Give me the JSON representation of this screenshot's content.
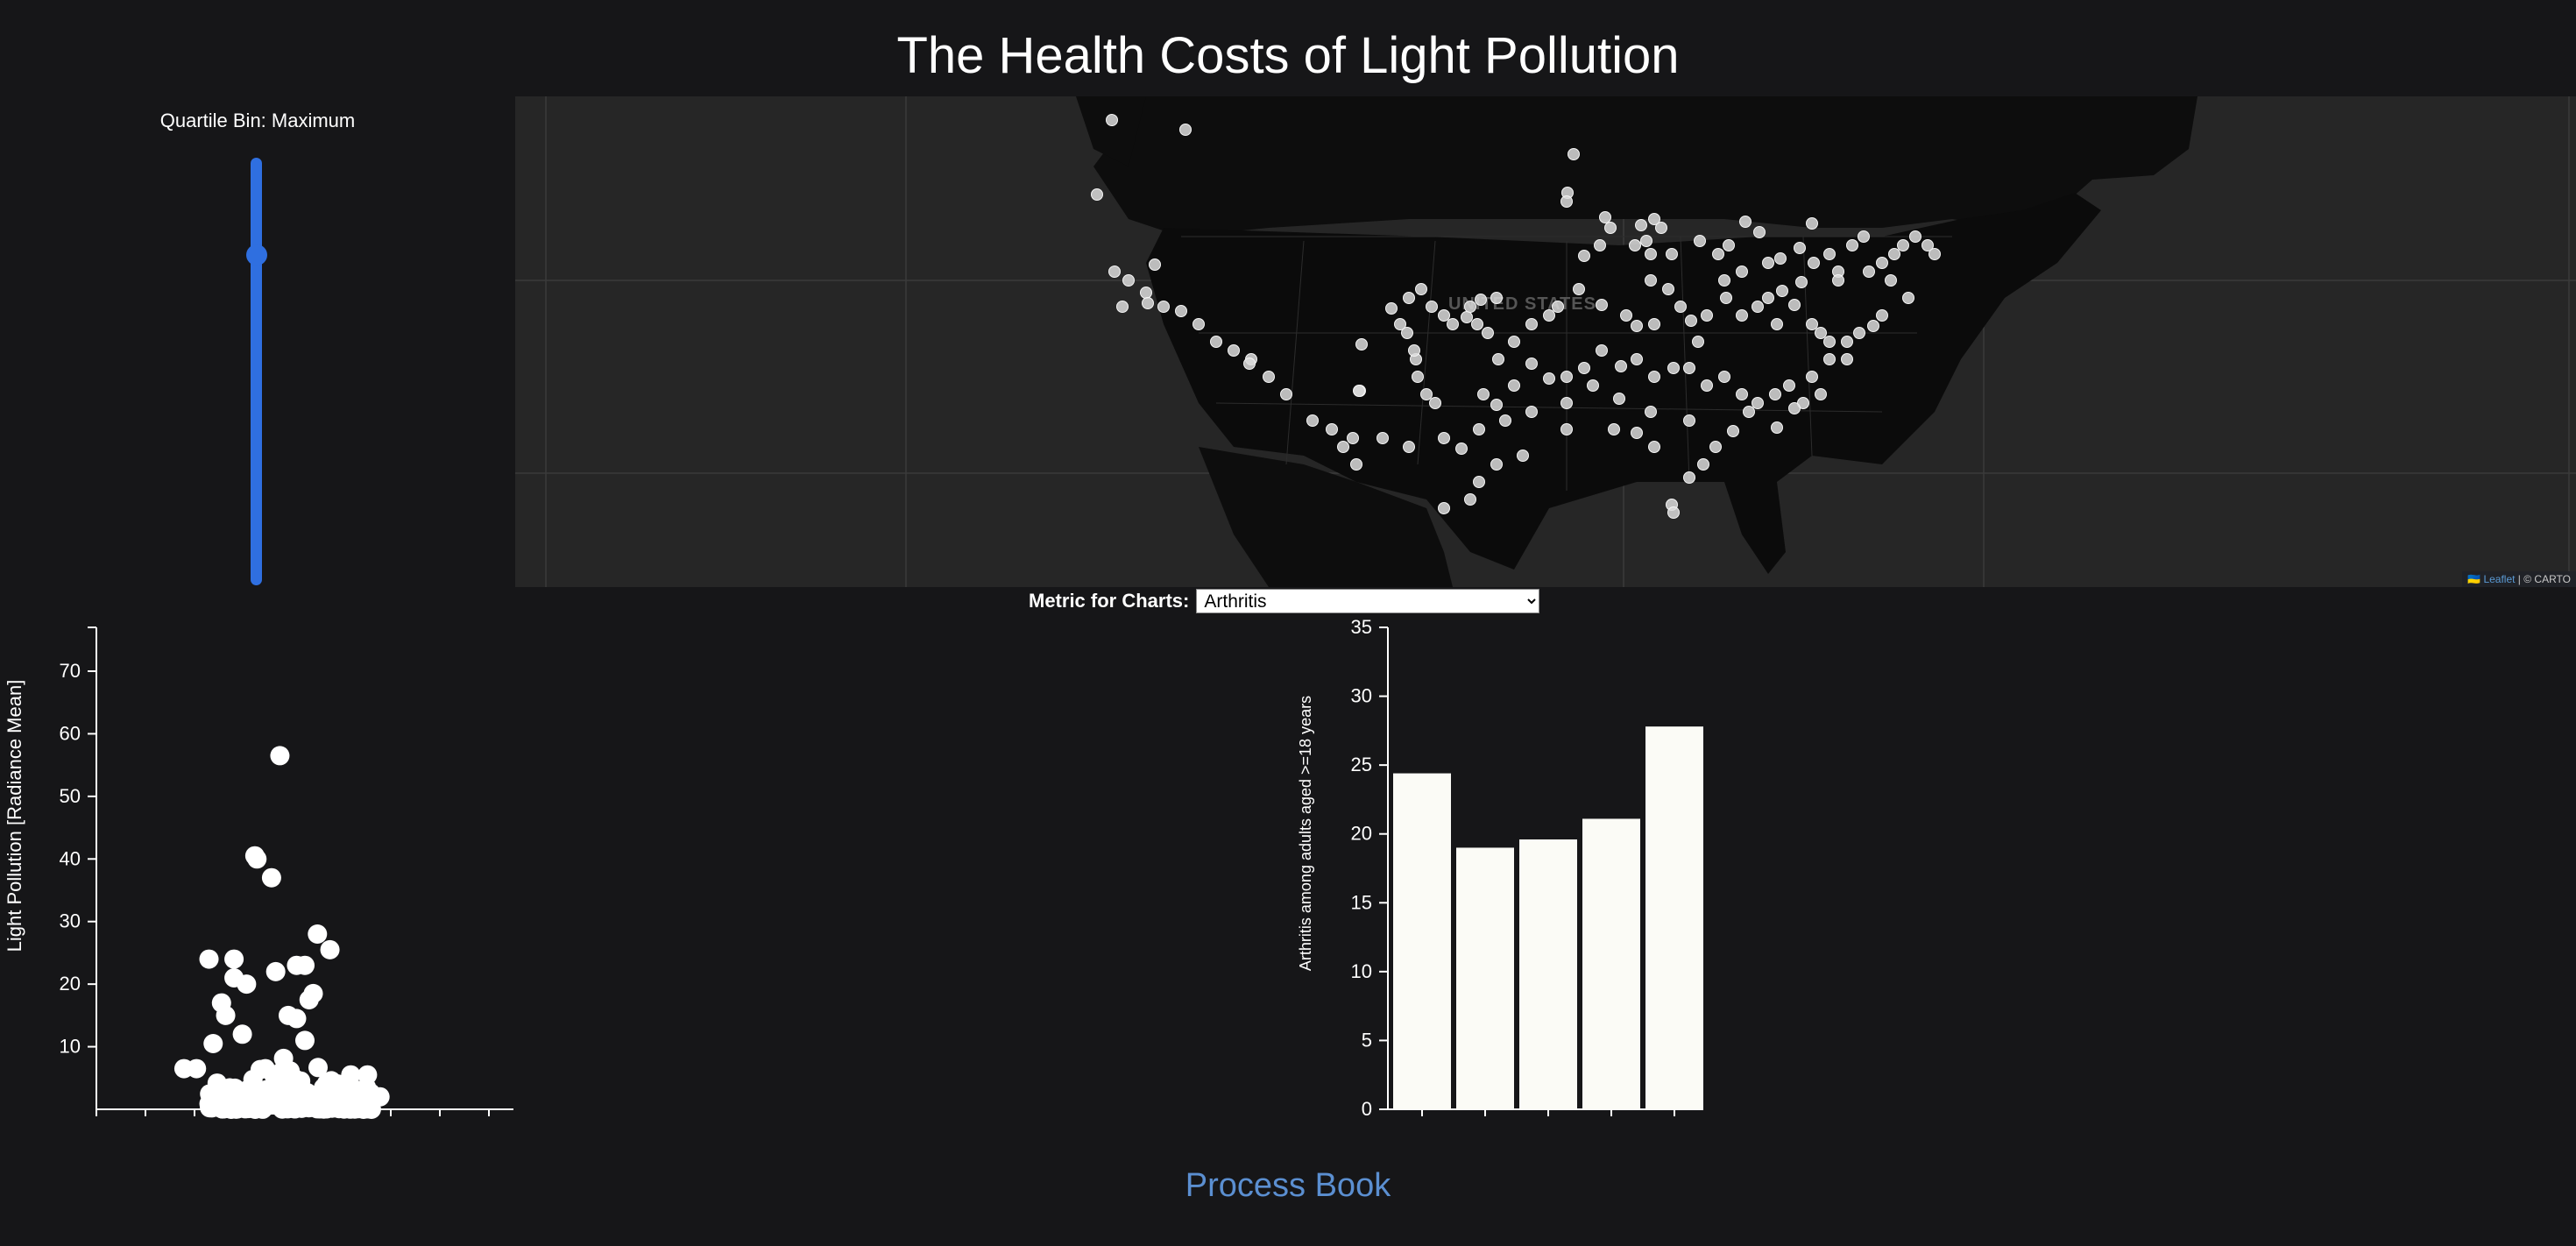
{
  "page": {
    "title": "The Health Costs of Light Pollution",
    "footer_link": "Process Book"
  },
  "slider": {
    "label": "Quartile Bin: Maximum",
    "value": 1.0,
    "color": "#2f6fe0"
  },
  "map": {
    "country_label": "UNITED STATES",
    "attribution_leaflet": "Leaflet",
    "attribution_rest": " | © CARTO",
    "attribution_flag": "🇺🇦",
    "point_color": "#dcdcdc"
  },
  "metric": {
    "label": "Metric for Charts:",
    "selected": "Arthritis",
    "options": [
      "Arthritis"
    ]
  },
  "chart_data": [
    {
      "type": "scatter",
      "ylabel": "Light Pollution [Radiance Mean]",
      "xlabel": "",
      "ylim": [
        0,
        77
      ],
      "yticks": [
        10,
        20,
        30,
        40,
        50,
        60,
        70
      ],
      "point_color": "#ffffff",
      "points": [
        [
          0.44,
          56.5
        ],
        [
          0.38,
          40.5
        ],
        [
          0.385,
          40
        ],
        [
          0.42,
          37
        ],
        [
          0.27,
          24
        ],
        [
          0.33,
          24
        ],
        [
          0.53,
          28
        ],
        [
          0.56,
          25.5
        ],
        [
          0.48,
          23
        ],
        [
          0.5,
          23
        ],
        [
          0.43,
          22
        ],
        [
          0.33,
          21
        ],
        [
          0.36,
          20
        ],
        [
          0.3,
          17
        ],
        [
          0.52,
          18.5
        ],
        [
          0.51,
          17.5
        ],
        [
          0.31,
          15
        ],
        [
          0.46,
          15
        ],
        [
          0.48,
          14.5
        ],
        [
          0.28,
          10.5
        ],
        [
          0.35,
          12
        ],
        [
          0.5,
          11
        ],
        [
          0.21,
          6.5
        ],
        [
          0.24,
          6.5
        ],
        [
          0.61,
          5.5
        ],
        [
          0.65,
          5.5
        ],
        [
          0.68,
          2
        ]
      ],
      "dense_cluster": {
        "x_from": 0.27,
        "x_to": 0.66,
        "y_max": 10,
        "count": 220
      }
    },
    {
      "type": "bar",
      "ylabel": "Arthritis among adults aged >=18 years",
      "xlabel": "",
      "ylim": [
        0,
        35
      ],
      "yticks": [
        0,
        5,
        10,
        15,
        20,
        25,
        30,
        35
      ],
      "categories": [
        "",
        "",
        "",
        "",
        ""
      ],
      "values": [
        24.4,
        19,
        19.6,
        21.1,
        27.8
      ],
      "bar_color": "#fbfbf6"
    }
  ]
}
